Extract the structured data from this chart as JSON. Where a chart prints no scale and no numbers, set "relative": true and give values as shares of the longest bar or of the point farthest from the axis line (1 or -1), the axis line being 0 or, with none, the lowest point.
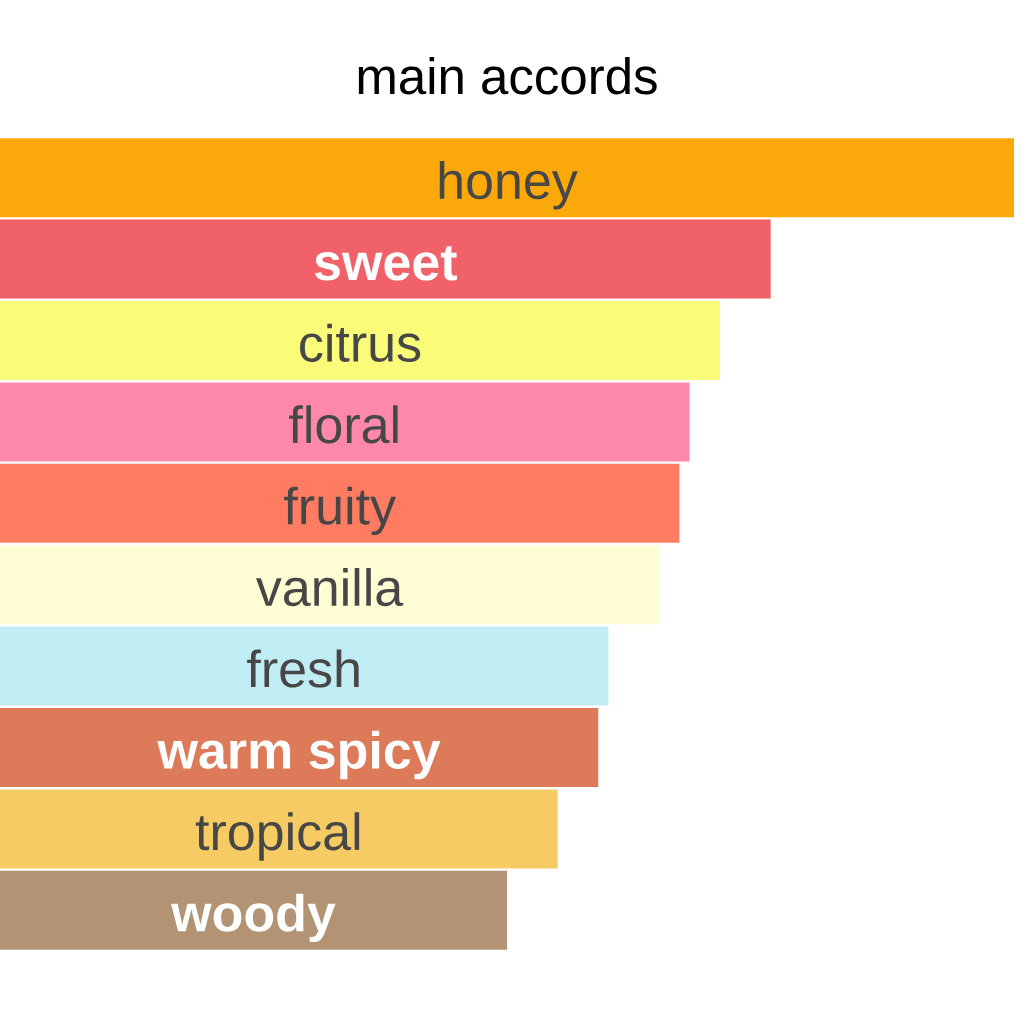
{
  "chart_data": {
    "type": "bar",
    "title": "main accords",
    "orientation": "horizontal",
    "relative": true,
    "categories": [
      "honey",
      "sweet",
      "citrus",
      "floral",
      "fruity",
      "vanilla",
      "fresh",
      "warm spicy",
      "tropical",
      "woody"
    ],
    "values": [
      1,
      0.76,
      0.71,
      0.68,
      0.67,
      0.65,
      0.6,
      0.59,
      0.55,
      0.5
    ],
    "colors": [
      "#fba90a",
      "#f0616a",
      "#fafc79",
      "#fe88aa",
      "#fd7c62",
      "#fffdd4",
      "#bfedf3",
      "#dd7a5a",
      "#f7cb63",
      "#b29374"
    ]
  }
}
